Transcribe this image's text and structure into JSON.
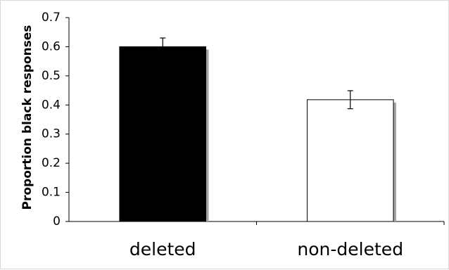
{
  "chart_data": {
    "type": "bar",
    "title": "",
    "xlabel": "",
    "ylabel": "Proportion black responses",
    "categories": [
      "deleted",
      "non-deleted"
    ],
    "values": [
      0.6,
      0.418
    ],
    "error_bars": [
      {
        "low": 0.57,
        "high": 0.63
      },
      {
        "low": 0.387,
        "high": 0.449
      }
    ],
    "bar_fill_colors": [
      "#000000",
      "#ffffff"
    ],
    "bar_edge_color": "#000000",
    "shadow_color": "#a6a6a6",
    "ylim": [
      0,
      0.7
    ],
    "yticks": [
      0,
      0.1,
      0.2,
      0.3,
      0.4,
      0.5,
      0.6,
      0.7
    ],
    "ytick_labels": [
      "0",
      "0.1",
      "0.2",
      "0.3",
      "0.4",
      "0.5",
      "0.6",
      "0.7"
    ],
    "grid": false,
    "legend": "none"
  }
}
